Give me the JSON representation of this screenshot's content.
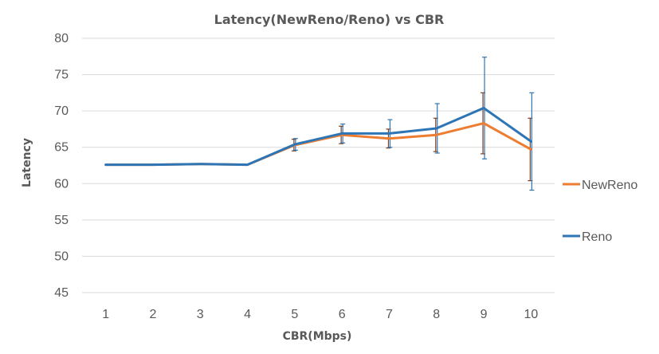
{
  "chart_data": {
    "type": "line",
    "title": "Latency(NewReno/Reno) vs CBR",
    "xlabel": "CBR(Mbps)",
    "ylabel": "Latency",
    "ylim": [
      45,
      80
    ],
    "yticks": [
      45,
      50,
      55,
      60,
      65,
      70,
      75,
      80
    ],
    "grid": true,
    "legend_position": "right",
    "x": [
      1,
      2,
      3,
      4,
      5,
      6,
      7,
      8,
      9,
      10
    ],
    "series": [
      {
        "name": "NewReno",
        "color": "#ED7D31",
        "values": [
          62.6,
          62.6,
          62.7,
          62.6,
          65.3,
          66.7,
          66.2,
          66.7,
          68.3,
          64.7
        ],
        "error": [
          0,
          0,
          0,
          0,
          0.8,
          1.2,
          1.3,
          2.3,
          4.2,
          4.3
        ]
      },
      {
        "name": "Reno",
        "color": "#2E75B6",
        "values": [
          62.6,
          62.6,
          62.7,
          62.6,
          65.4,
          66.9,
          66.9,
          67.6,
          70.4,
          65.8
        ],
        "error": [
          0,
          0,
          0,
          0,
          0.8,
          1.3,
          1.9,
          3.4,
          7.0,
          6.7
        ]
      }
    ]
  }
}
